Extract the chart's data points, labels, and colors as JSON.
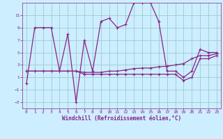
{
  "xlabel": "Windchill (Refroidissement éolien,°C)",
  "background_color": "#cceeff",
  "grid_color": "#99cccc",
  "line_color": "#882288",
  "xlim": [
    -0.5,
    23.5
  ],
  "ylim": [
    -4.0,
    13.0
  ],
  "xticks": [
    0,
    1,
    2,
    3,
    4,
    5,
    6,
    7,
    8,
    9,
    10,
    11,
    12,
    13,
    14,
    15,
    16,
    17,
    18,
    19,
    20,
    21,
    22,
    23
  ],
  "yticks": [
    -3,
    -1,
    1,
    3,
    5,
    7,
    9,
    11
  ],
  "series1_x": [
    0,
    1,
    2,
    3,
    4,
    5,
    6,
    7,
    8,
    9,
    10,
    11,
    12,
    13,
    14,
    15,
    16,
    17,
    18,
    19,
    20,
    21,
    22,
    23
  ],
  "series1_y": [
    0,
    9,
    9,
    9,
    2,
    8,
    -3,
    7,
    2,
    10,
    10.5,
    9,
    9.5,
    13,
    13,
    13,
    10,
    2,
    2,
    1,
    2,
    5.5,
    5,
    5
  ],
  "series2_x": [
    0,
    1,
    2,
    3,
    4,
    5,
    6,
    7,
    8,
    9,
    10,
    11,
    12,
    13,
    14,
    15,
    16,
    17,
    18,
    19,
    20,
    21,
    22,
    23
  ],
  "series2_y": [
    2,
    2,
    2,
    2,
    2,
    2,
    2,
    1.8,
    1.8,
    1.8,
    2.0,
    2.0,
    2.2,
    2.4,
    2.5,
    2.5,
    2.7,
    2.8,
    3.0,
    3.2,
    4.0,
    4.5,
    4.5,
    4.8
  ],
  "series3_x": [
    0,
    1,
    2,
    3,
    4,
    5,
    6,
    7,
    8,
    9,
    10,
    11,
    12,
    13,
    14,
    15,
    16,
    17,
    18,
    19,
    20,
    21,
    22,
    23
  ],
  "series3_y": [
    2,
    2,
    2,
    2,
    2,
    2,
    2,
    1.5,
    1.5,
    1.5,
    1.5,
    1.5,
    1.5,
    1.5,
    1.5,
    1.5,
    1.5,
    1.5,
    1.5,
    0.5,
    1.0,
    4.0,
    4.0,
    4.5
  ]
}
